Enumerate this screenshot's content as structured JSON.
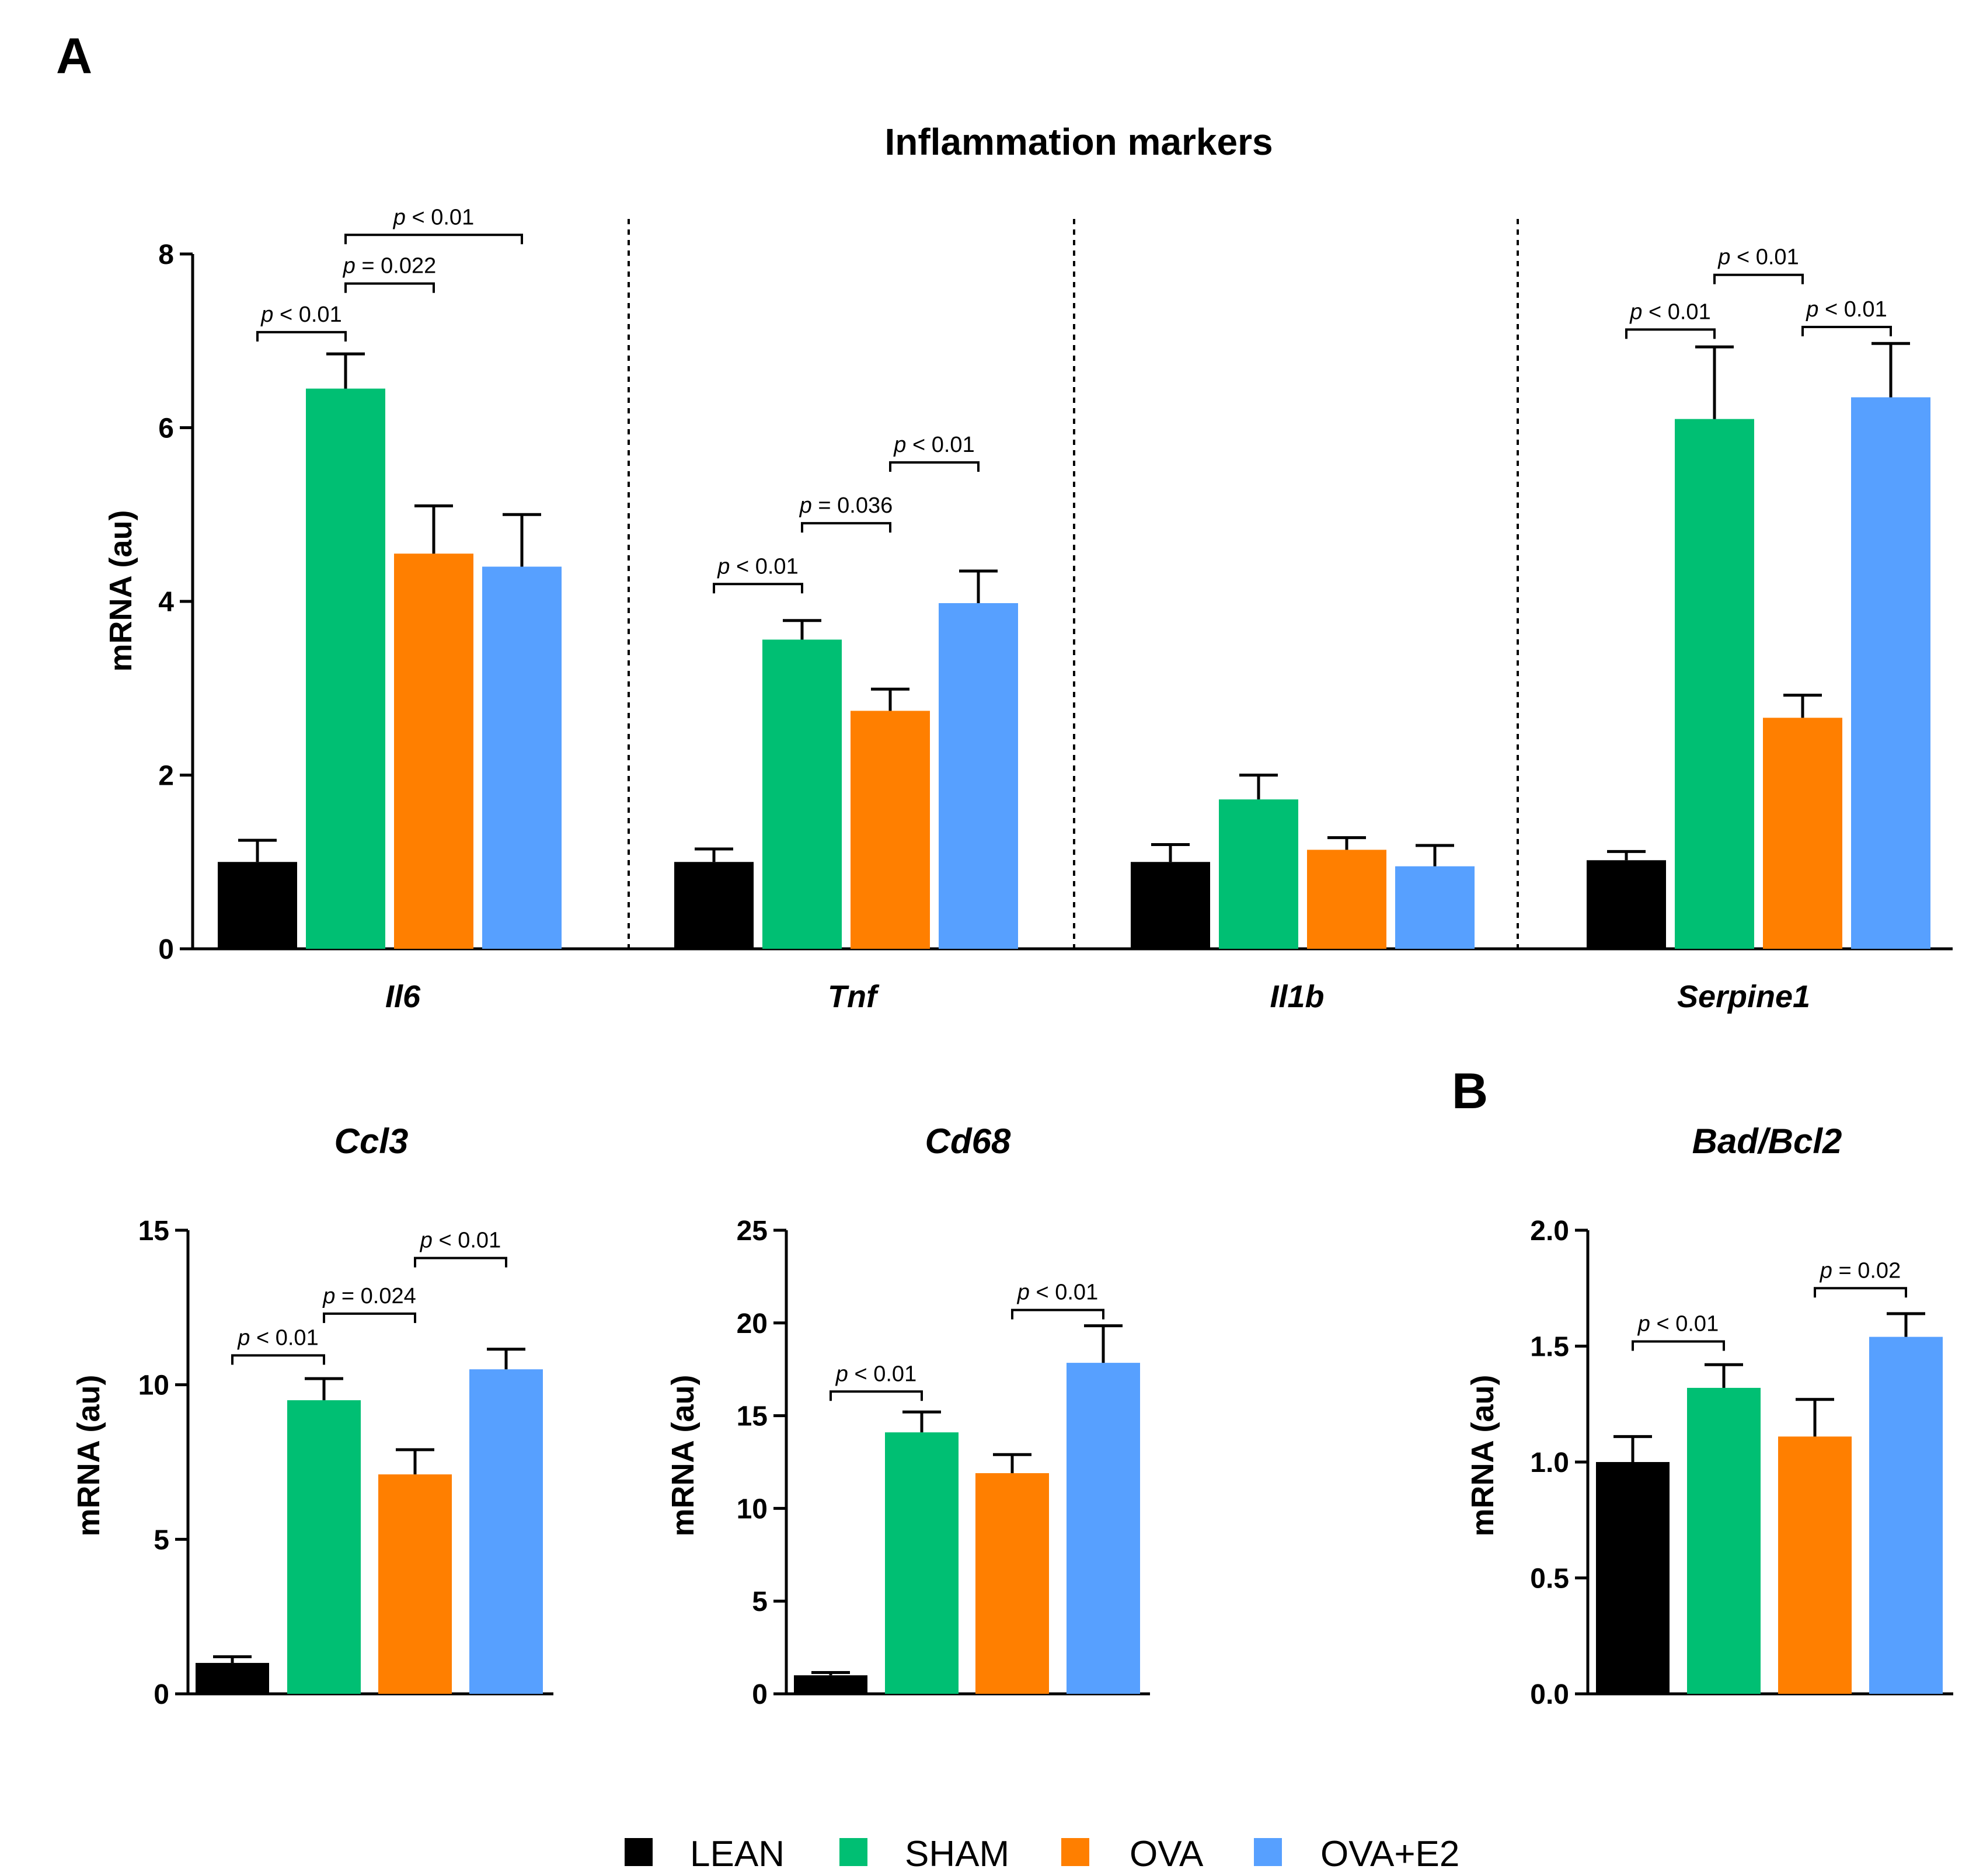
{
  "colors": {
    "LEAN": "#000000",
    "SHAM": "#00bf73",
    "OVA": "#ff7f00",
    "OVA+E2": "#57a0ff"
  },
  "chart_data": [
    {
      "id": "A-main",
      "panel_label": "A",
      "type": "bar",
      "title": "Inflammation markers",
      "ylabel": "mRNA (au)",
      "ylim": [
        0,
        8
      ],
      "yticks": [
        0,
        2,
        4,
        6,
        8
      ],
      "ytick_labels": [
        "0",
        "2",
        "4",
        "6",
        "8"
      ],
      "series_names": [
        "LEAN",
        "SHAM",
        "OVA",
        "OVA+E2"
      ],
      "groups": [
        {
          "label": "Il6",
          "values": [
            1.0,
            6.45,
            4.55,
            4.4
          ],
          "errors": [
            0.25,
            0.4,
            0.55,
            0.6
          ],
          "comparisons": [
            {
              "from": 0,
              "to": 1,
              "text": "p < 0.01",
              "y": 7.1
            },
            {
              "from": 1,
              "to": 2,
              "text": "p = 0.022",
              "y": 7.66
            },
            {
              "from": 1,
              "to": 3,
              "text": "p < 0.01",
              "y": 8.22
            }
          ]
        },
        {
          "label": "Tnf",
          "values": [
            1.0,
            3.56,
            2.74,
            3.98
          ],
          "errors": [
            0.15,
            0.22,
            0.25,
            0.37
          ],
          "comparisons": [
            {
              "from": 0,
              "to": 1,
              "text": "p < 0.01",
              "y": 4.2
            },
            {
              "from": 1,
              "to": 2,
              "text": "p = 0.036",
              "y": 4.9
            },
            {
              "from": 2,
              "to": 3,
              "text": "p < 0.01",
              "y": 5.6
            }
          ]
        },
        {
          "label": "Il1b",
          "values": [
            1.0,
            1.72,
            1.14,
            0.95
          ],
          "errors": [
            0.2,
            0.28,
            0.14,
            0.24
          ],
          "comparisons": []
        },
        {
          "label": "Serpine1",
          "values": [
            1.02,
            6.1,
            2.66,
            6.35
          ],
          "errors": [
            0.1,
            0.83,
            0.26,
            0.62
          ],
          "comparisons": [
            {
              "from": 0,
              "to": 1,
              "text": "p < 0.01",
              "y": 7.13
            },
            {
              "from": 1,
              "to": 2,
              "text": "p < 0.01",
              "y": 7.76
            },
            {
              "from": 2,
              "to": 3,
              "text": "p < 0.01",
              "y": 7.16
            }
          ]
        }
      ]
    },
    {
      "id": "A-ccl3",
      "type": "bar",
      "title": "Ccl3",
      "ylabel": "mRNA (au)",
      "ylim": [
        0,
        15
      ],
      "yticks": [
        0,
        5,
        10,
        15
      ],
      "ytick_labels": [
        "0",
        "5",
        "10",
        "15"
      ],
      "series_names": [
        "LEAN",
        "SHAM",
        "OVA",
        "OVA+E2"
      ],
      "values": [
        1.0,
        9.5,
        7.1,
        10.5
      ],
      "errors": [
        0.2,
        0.7,
        0.8,
        0.65
      ],
      "comparisons": [
        {
          "from": 0,
          "to": 1,
          "text": "p < 0.01",
          "y": 10.95
        },
        {
          "from": 1,
          "to": 2,
          "text": "p = 0.024",
          "y": 12.3
        },
        {
          "from": 2,
          "to": 3,
          "text": "p < 0.01",
          "y": 14.1
        }
      ]
    },
    {
      "id": "A-cd68",
      "type": "bar",
      "title": "Cd68",
      "ylabel": "mRNA (au)",
      "ylim": [
        0,
        25
      ],
      "yticks": [
        0,
        5,
        10,
        15,
        20,
        25
      ],
      "ytick_labels": [
        "0",
        "5",
        "10",
        "15",
        "20",
        "25"
      ],
      "series_names": [
        "LEAN",
        "SHAM",
        "OVA",
        "OVA+E2"
      ],
      "values": [
        1.0,
        14.1,
        11.9,
        17.85
      ],
      "errors": [
        0.15,
        1.1,
        1.0,
        2.0
      ],
      "comparisons": [
        {
          "from": 0,
          "to": 1,
          "text": "p < 0.01",
          "y": 16.3
        },
        {
          "from": 2,
          "to": 3,
          "text": "p < 0.01",
          "y": 20.7
        }
      ]
    },
    {
      "id": "B-badbcl2",
      "panel_label": "B",
      "type": "bar",
      "title": "Bad/Bcl2",
      "ylabel": "mRNA (au)",
      "ylim": [
        0,
        2.0
      ],
      "yticks": [
        0,
        0.5,
        1.0,
        1.5,
        2.0
      ],
      "ytick_labels": [
        "0.0",
        "0.5",
        "1.0",
        "1.5",
        "2.0"
      ],
      "series_names": [
        "LEAN",
        "SHAM",
        "OVA",
        "OVA+E2"
      ],
      "values": [
        1.0,
        1.32,
        1.11,
        1.54
      ],
      "errors": [
        0.11,
        0.1,
        0.16,
        0.1
      ],
      "comparisons": [
        {
          "from": 0,
          "to": 1,
          "text": "p < 0.01",
          "y": 1.52
        },
        {
          "from": 2,
          "to": 3,
          "text": "p = 0.02",
          "y": 1.75
        }
      ]
    }
  ],
  "legend": {
    "position": "bottom-center",
    "items": [
      {
        "label": "LEAN",
        "color": "#000000"
      },
      {
        "label": "SHAM",
        "color": "#00bf73"
      },
      {
        "label": "OVA",
        "color": "#ff7f00"
      },
      {
        "label": "OVA+E2",
        "color": "#57a0ff"
      }
    ]
  }
}
